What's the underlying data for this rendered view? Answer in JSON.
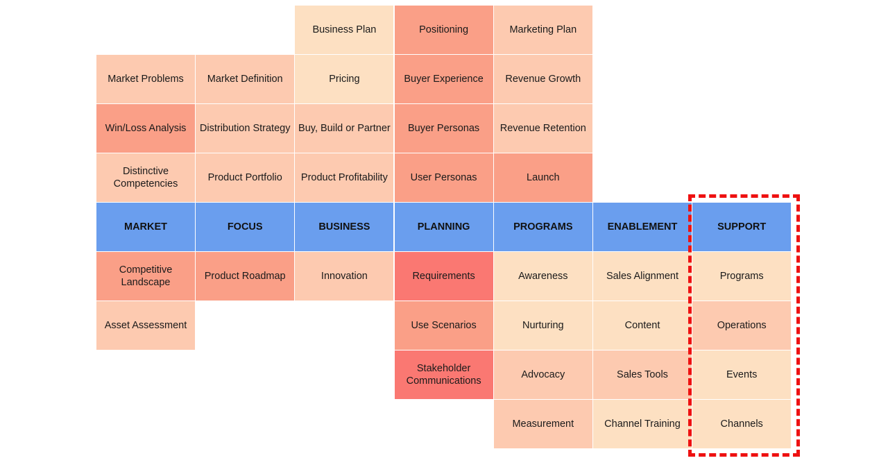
{
  "colors": {
    "header": "#6a9eee",
    "highlight_border": "#ee1111",
    "levels": [
      "#fde0c2",
      "#fdcab0",
      "#fbc2a6",
      "#fa9f87",
      "#fa8a78",
      "#fa7872"
    ]
  },
  "columns": [
    {
      "header": "MARKET",
      "above": [
        "Market Problems",
        "Win/Loss Analysis",
        "Distinctive Competencies"
      ],
      "above_levels": [
        2,
        4,
        2
      ],
      "below": [
        "Competitive Landscape",
        "Asset Assessment"
      ],
      "below_levels": [
        4,
        2
      ]
    },
    {
      "header": "FOCUS",
      "above": [
        "Market Definition",
        "Distribution Strategy",
        "Product Portfolio"
      ],
      "above_levels": [
        2,
        2,
        2
      ],
      "below": [
        "Product Roadmap"
      ],
      "below_levels": [
        4
      ]
    },
    {
      "header": "BUSINESS",
      "above": [
        "Business Plan",
        "Pricing",
        "Buy, Build or Partner",
        "Product Profitability"
      ],
      "above_levels": [
        1,
        1,
        2,
        2
      ],
      "below": [
        "Innovation"
      ],
      "below_levels": [
        2
      ]
    },
    {
      "header": "PLANNING",
      "above": [
        "Positioning",
        "Buyer Experience",
        "Buyer Personas",
        "User Personas"
      ],
      "above_levels": [
        4,
        4,
        4,
        4
      ],
      "below": [
        "Requirements",
        "Use Scenarios",
        "Stakeholder Communications"
      ],
      "below_levels": [
        6,
        4,
        6
      ]
    },
    {
      "header": "PROGRAMS",
      "above": [
        "Marketing Plan",
        "Revenue Growth",
        "Revenue Retention",
        "Launch"
      ],
      "above_levels": [
        2,
        2,
        2,
        4
      ],
      "below": [
        "Awareness",
        "Nurturing",
        "Advocacy",
        "Measurement"
      ],
      "below_levels": [
        1,
        1,
        2,
        2
      ]
    },
    {
      "header": "ENABLEMENT",
      "above": [],
      "above_levels": [],
      "below": [
        "Sales Alignment",
        "Content",
        "Sales Tools",
        "Channel Training"
      ],
      "below_levels": [
        1,
        1,
        2,
        1
      ]
    },
    {
      "header": "SUPPORT",
      "above": [],
      "above_levels": [],
      "below": [
        "Programs",
        "Operations",
        "Events",
        "Channels"
      ],
      "below_levels": [
        1,
        2,
        1,
        1
      ]
    }
  ],
  "highlighted_column": "SUPPORT"
}
